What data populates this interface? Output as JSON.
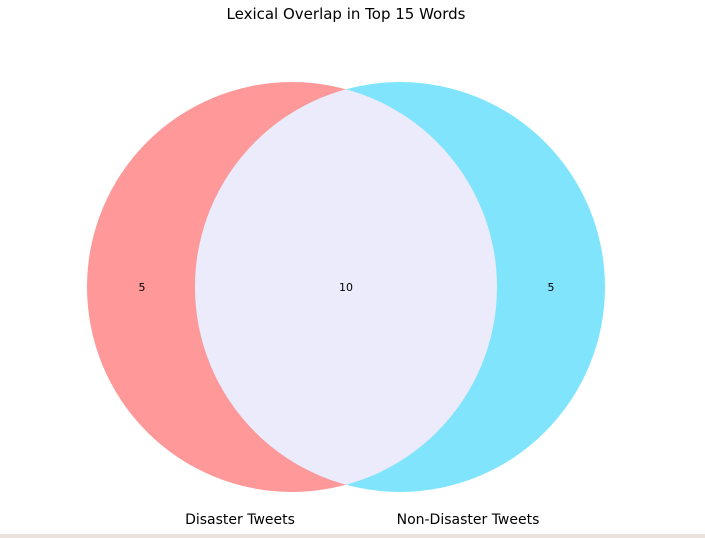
{
  "title": "Lexical Overlap in Top 15 Words",
  "sets": [
    {
      "name": "Disaster Tweets",
      "only_count": "5",
      "color": "#ff9999"
    },
    {
      "name": "Non-Disaster Tweets",
      "only_count": "5",
      "color": "#80e5fc"
    }
  ],
  "intersection": {
    "count": "10",
    "color": "#ecebfb"
  }
}
